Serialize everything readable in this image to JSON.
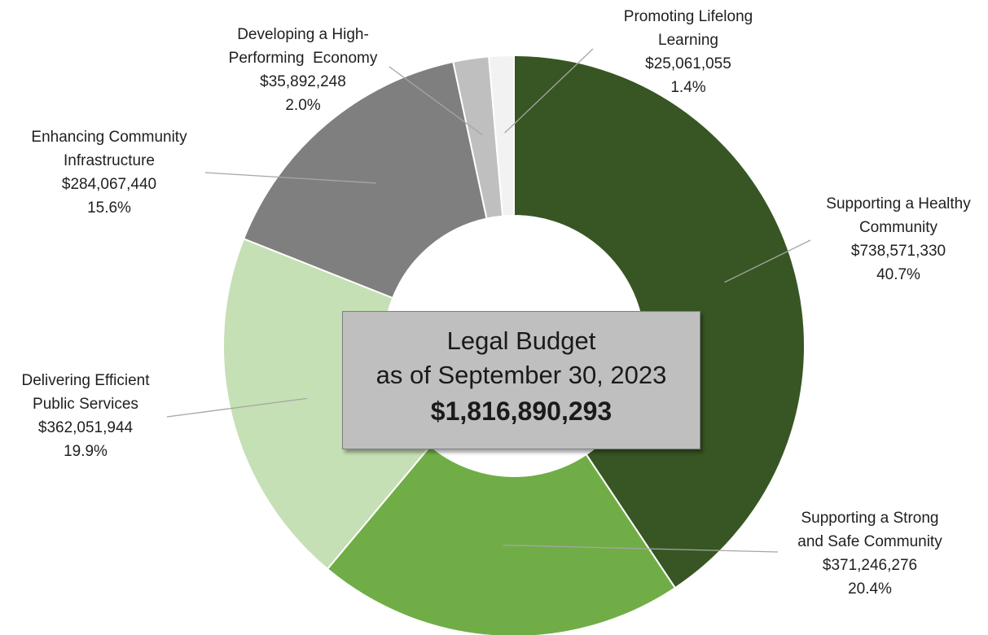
{
  "chart_data": {
    "type": "donut",
    "center": {
      "line1": "Legal Budget",
      "line2": "as of September 30, 2023",
      "total": "$1,816,890,293"
    },
    "slices": [
      {
        "name_lines": [
          "Supporting a Healthy",
          "Community"
        ],
        "value": 738571330,
        "value_label": "$738,571,330",
        "percent": 40.7,
        "percent_label": "40.7%",
        "color": "#375623"
      },
      {
        "name_lines": [
          "Supporting a Strong",
          "and Safe Community"
        ],
        "value": 371246276,
        "value_label": "$371,246,276",
        "percent": 20.4,
        "percent_label": "20.4%",
        "color": "#70ad47"
      },
      {
        "name_lines": [
          "Delivering Efficient",
          "Public Services"
        ],
        "value": 362051944,
        "value_label": "$362,051,944",
        "percent": 19.9,
        "percent_label": "19.9%",
        "color": "#c5e0b4"
      },
      {
        "name_lines": [
          "Enhancing Community",
          "Infrastructure"
        ],
        "value": 284067440,
        "value_label": "$284,067,440",
        "percent": 15.6,
        "percent_label": "15.6%",
        "color": "#7f7f7f"
      },
      {
        "name_lines": [
          "Developing a High-",
          "Performing  Economy"
        ],
        "value": 35892248,
        "value_label": "$35,892,248",
        "percent": 2.0,
        "percent_label": "2.0%",
        "color": "#bfbfbf"
      },
      {
        "name_lines": [
          "Promoting Lifelong",
          "Learning"
        ],
        "value": 25061055,
        "value_label": "$25,061,055",
        "percent": 1.4,
        "percent_label": "1.4%",
        "color": "#f2f2f2"
      }
    ]
  }
}
